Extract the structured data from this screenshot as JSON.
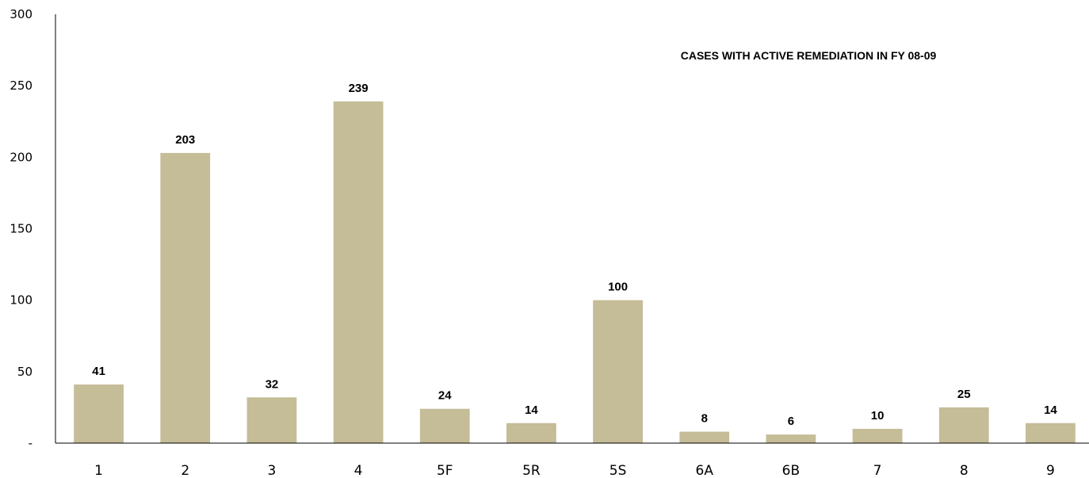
{
  "chart_data": {
    "type": "bar",
    "title": "CASES WITH ACTIVE REMEDIATION IN FY 08-09",
    "categories": [
      "1",
      "2",
      "3",
      "4",
      "5F",
      "5R",
      "5S",
      "6A",
      "6B",
      "7",
      "8",
      "9"
    ],
    "values": [
      41,
      203,
      32,
      239,
      24,
      14,
      100,
      8,
      6,
      10,
      25,
      14
    ],
    "xlabel": "",
    "ylabel": "",
    "ylim": [
      0,
      300
    ],
    "y_ticks": [
      {
        "value": 0,
        "label": "-"
      },
      {
        "value": 50,
        "label": "50"
      },
      {
        "value": 100,
        "label": "100"
      },
      {
        "value": 150,
        "label": "150"
      },
      {
        "value": 200,
        "label": "200"
      },
      {
        "value": 250,
        "label": "250"
      },
      {
        "value": 300,
        "label": "300"
      }
    ],
    "grid": false,
    "legend": "none",
    "bar_color": "#c5bc98"
  }
}
